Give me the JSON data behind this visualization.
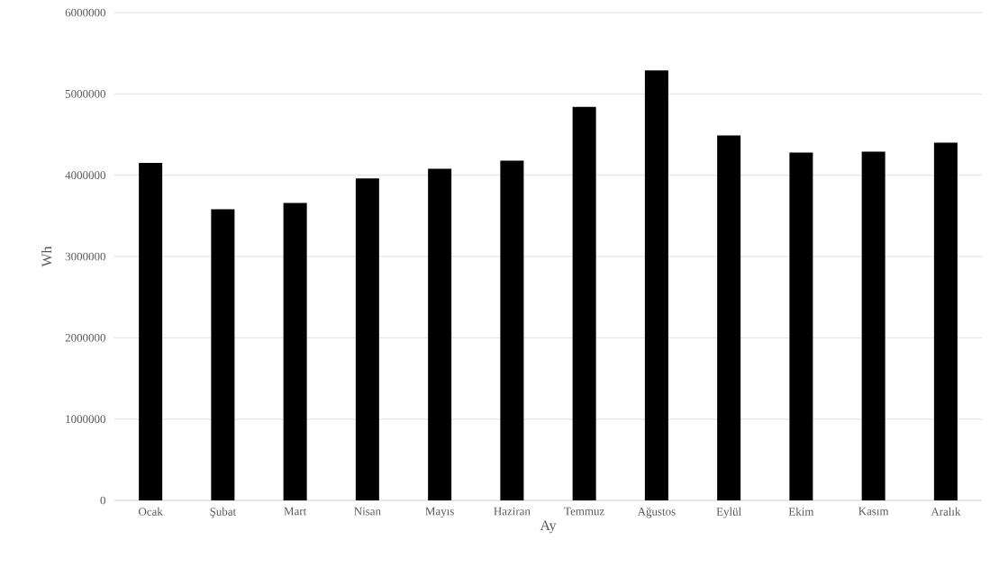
{
  "chart_data": {
    "type": "bar",
    "xlabel": "Ay",
    "ylabel": "Wh",
    "categories": [
      "Ocak",
      "Şubat",
      "Mart",
      "Nisan",
      "Mayıs",
      "Haziran",
      "Temmuz",
      "Ağustos",
      "Eylül",
      "Ekim",
      "Kasım",
      "Aralık"
    ],
    "values": [
      4150000,
      3580000,
      3660000,
      3960000,
      4080000,
      4180000,
      4840000,
      5290000,
      4490000,
      4280000,
      4290000,
      4400000
    ],
    "color": "#000000",
    "ylim": [
      0,
      6000000
    ],
    "yticks": [
      0,
      1000000,
      2000000,
      3000000,
      4000000,
      5000000,
      6000000
    ],
    "grid": "y"
  }
}
